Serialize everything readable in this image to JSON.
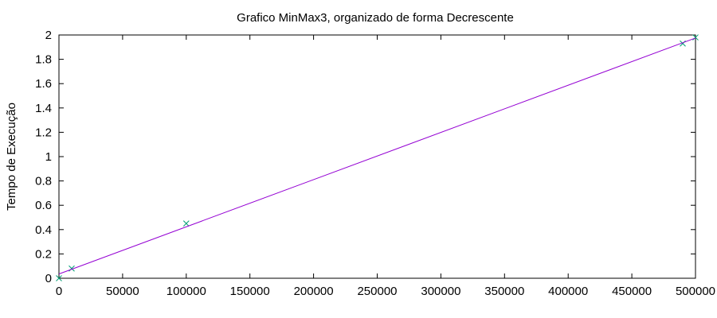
{
  "chart_data": {
    "type": "line",
    "title": "Grafico MinMax3, organizado de forma Decrescente",
    "xlabel": "",
    "ylabel": "Tempo de Execução",
    "xlim": [
      0,
      500000
    ],
    "ylim": [
      0,
      2
    ],
    "x_ticks": [
      0,
      50000,
      100000,
      150000,
      200000,
      250000,
      300000,
      350000,
      400000,
      450000,
      500000
    ],
    "y_ticks": [
      0,
      0.2,
      0.4,
      0.6,
      0.8,
      1,
      1.2,
      1.4,
      1.6,
      1.8,
      2
    ],
    "x_tick_labels": [
      "0",
      "50000",
      "100000",
      "150000",
      "200000",
      "250000",
      "300000",
      "350000",
      "400000",
      "450000",
      "500000"
    ],
    "y_tick_labels": [
      "0",
      "0.2",
      "0.4",
      "0.6",
      "0.8",
      "1",
      "1.2",
      "1.4",
      "1.6",
      "1.8",
      "2"
    ],
    "grid": false,
    "legend": "none",
    "series": [
      {
        "kind": "points",
        "marker": "x",
        "color": "#009e73",
        "points": [
          {
            "x": 0,
            "y": 0.0
          },
          {
            "x": 10000,
            "y": 0.08
          },
          {
            "x": 100000,
            "y": 0.45
          },
          {
            "x": 490000,
            "y": 1.93
          },
          {
            "x": 500000,
            "y": 1.98
          }
        ]
      },
      {
        "kind": "fit-line",
        "color": "#9400d3",
        "points": [
          {
            "x": 0,
            "y": 0.035
          },
          {
            "x": 500000,
            "y": 1.975
          }
        ]
      }
    ]
  }
}
